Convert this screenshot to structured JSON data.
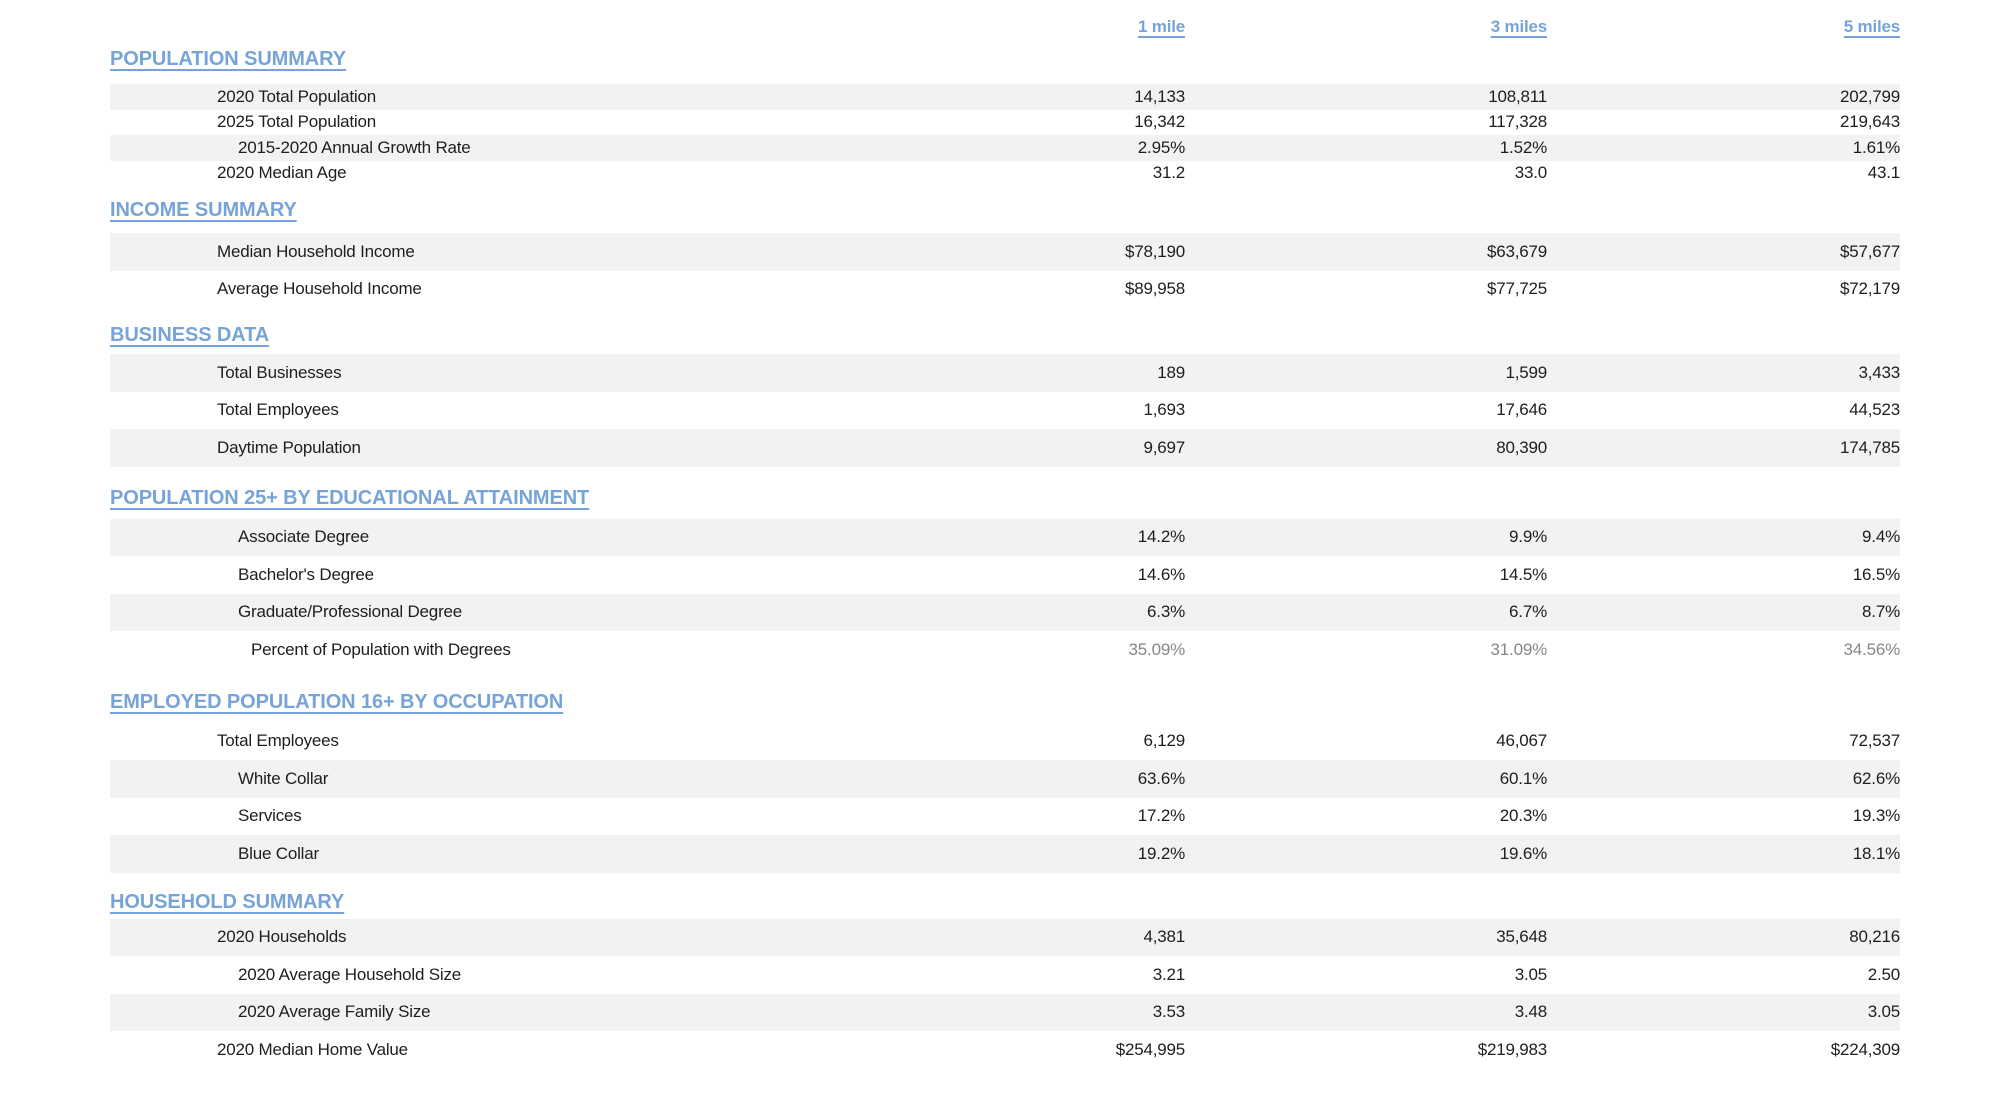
{
  "colors": {
    "accent_blue": "#77a4d8",
    "stripe_gray": "#f2f2f2",
    "muted_value_gray": "#878787",
    "text": "#1e1e1e",
    "background": "#ffffff"
  },
  "columns": [
    "1 mile",
    "3 miles",
    "5 miles"
  ],
  "sections": [
    {
      "title": "POPULATION SUMMARY",
      "rows": [
        {
          "label": "2020 Total Population",
          "indent": 1,
          "shaded": true,
          "muted": false,
          "values": [
            "14,133",
            "108,811",
            "202,799"
          ]
        },
        {
          "label": "2025 Total Population",
          "indent": 1,
          "shaded": false,
          "muted": false,
          "values": [
            "16,342",
            "117,328",
            "219,643"
          ]
        },
        {
          "label": "2015-2020 Annual Growth Rate",
          "indent": 2,
          "shaded": true,
          "muted": false,
          "values": [
            "2.95%",
            "1.52%",
            "1.61%"
          ]
        },
        {
          "label": "2020 Median Age",
          "indent": 1,
          "shaded": false,
          "muted": false,
          "values": [
            "31.2",
            "33.0",
            "43.1"
          ]
        }
      ]
    },
    {
      "title": "INCOME SUMMARY",
      "rows": [
        {
          "label": "Median Household Income",
          "indent": 1,
          "shaded": true,
          "muted": false,
          "values": [
            "$78,190",
            "$63,679",
            "$57,677"
          ]
        },
        {
          "label": "Average Household Income",
          "indent": 1,
          "shaded": false,
          "muted": false,
          "values": [
            "$89,958",
            "$77,725",
            "$72,179"
          ]
        }
      ]
    },
    {
      "title": "BUSINESS DATA",
      "rows": [
        {
          "label": "Total Businesses",
          "indent": 1,
          "shaded": true,
          "muted": false,
          "values": [
            "189",
            "1,599",
            "3,433"
          ]
        },
        {
          "label": "Total Employees",
          "indent": 1,
          "shaded": false,
          "muted": false,
          "values": [
            "1,693",
            "17,646",
            "44,523"
          ]
        },
        {
          "label": "Daytime Population",
          "indent": 1,
          "shaded": true,
          "muted": false,
          "values": [
            "9,697",
            "80,390",
            "174,785"
          ]
        }
      ]
    },
    {
      "title": "POPULATION 25+ BY EDUCATIONAL ATTAINMENT",
      "rows": [
        {
          "label": "Associate Degree",
          "indent": 2,
          "shaded": true,
          "muted": false,
          "values": [
            "14.2%",
            "9.9%",
            "9.4%"
          ]
        },
        {
          "label": "Bachelor's Degree",
          "indent": 2,
          "shaded": false,
          "muted": false,
          "values": [
            "14.6%",
            "14.5%",
            "16.5%"
          ]
        },
        {
          "label": "Graduate/Professional Degree",
          "indent": 2,
          "shaded": true,
          "muted": false,
          "values": [
            "6.3%",
            "6.7%",
            "8.7%"
          ]
        },
        {
          "label": "Percent of Population with Degrees",
          "indent": 3,
          "shaded": false,
          "muted": true,
          "values": [
            "35.09%",
            "31.09%",
            "34.56%"
          ]
        }
      ]
    },
    {
      "title": "EMPLOYED POPULATION 16+ BY OCCUPATION",
      "rows": [
        {
          "label": "Total Employees",
          "indent": 1,
          "shaded": false,
          "muted": false,
          "values": [
            "6,129",
            "46,067",
            "72,537"
          ]
        },
        {
          "label": "White Collar",
          "indent": 2,
          "shaded": true,
          "muted": false,
          "values": [
            "63.6%",
            "60.1%",
            "62.6%"
          ]
        },
        {
          "label": "Services",
          "indent": 2,
          "shaded": false,
          "muted": false,
          "values": [
            "17.2%",
            "20.3%",
            "19.3%"
          ]
        },
        {
          "label": "Blue Collar",
          "indent": 2,
          "shaded": true,
          "muted": false,
          "values": [
            "19.2%",
            "19.6%",
            "18.1%"
          ]
        }
      ]
    },
    {
      "title": "HOUSEHOLD SUMMARY",
      "rows": [
        {
          "label": "2020 Households",
          "indent": 1,
          "shaded": true,
          "muted": false,
          "values": [
            "4,381",
            "35,648",
            "80,216"
          ]
        },
        {
          "label": "2020 Average Household Size",
          "indent": 2,
          "shaded": false,
          "muted": false,
          "values": [
            "3.21",
            "3.05",
            "2.50"
          ]
        },
        {
          "label": "2020 Average Family Size",
          "indent": 2,
          "shaded": true,
          "muted": false,
          "values": [
            "3.53",
            "3.48",
            "3.05"
          ]
        },
        {
          "label": "2020 Median Home Value",
          "indent": 1,
          "shaded": false,
          "muted": false,
          "values": [
            "$254,995",
            "$219,983",
            "$224,309"
          ]
        }
      ]
    }
  ]
}
